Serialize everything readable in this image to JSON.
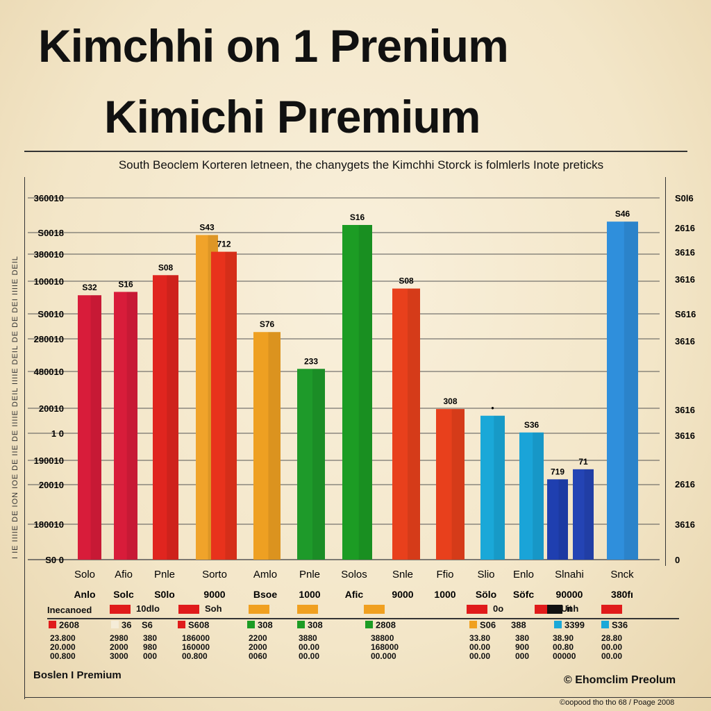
{
  "title_line1": "Kimchhi  on 1 Prenium",
  "title_line2": "Kimichi Pıremium",
  "subtitle": "South Beoclem Korteren letneen, the chanygets the Kimchhi Storck is folmlerls Inote preticks",
  "side_text": "I IE IIIIE DE ION IOE DE IIE DE IIIIE DEIL IIIIE DEIL DE DE DEI IIIIE DEIL",
  "chart_data": {
    "type": "bar",
    "title": "Kimchhi  on 1 Prenium",
    "y_left_ticks": [
      "360010",
      "S0018",
      "380010",
      "100010",
      "S0010",
      "280010",
      "480010",
      "20010",
      "1 0",
      "190010",
      "20010",
      "180010",
      "S0 0"
    ],
    "y_right_ticks": [
      "S0l6",
      "2616",
      "3616",
      "3616",
      "S616",
      "3616",
      "3616",
      "3616",
      "2616",
      "3616",
      "0"
    ],
    "ylim": [
      0,
      100
    ],
    "bars": [
      {
        "label": "S32",
        "value": 79,
        "color": "#d81c3a"
      },
      {
        "label": "S16",
        "value": 80,
        "color": "#d81c3a"
      },
      {
        "label": "S08",
        "value": 85,
        "color": "#e0251f"
      },
      {
        "label": "S43",
        "value": 97,
        "color": "#f0a32a"
      },
      {
        "label": "712",
        "value": 92,
        "color": "#e8321c"
      },
      {
        "label": "S76",
        "value": 68,
        "color": "#eea022"
      },
      {
        "label": "233",
        "value": 57,
        "color": "#1e9a2a"
      },
      {
        "label": "S16",
        "value": 100,
        "color": "#1c9c24"
      },
      {
        "label": "S08",
        "value": 81,
        "color": "#e8401c"
      },
      {
        "label": "308",
        "value": 45,
        "color": "#e8401c"
      },
      {
        "label": "•",
        "value": 43,
        "color": "#1aa8d8"
      },
      {
        "label": "S36",
        "value": 38,
        "color": "#1aa4d8"
      },
      {
        "label": "719",
        "value": 24,
        "color": "#1f3fb0"
      },
      {
        "label": "71",
        "value": 27,
        "color": "#2444b4"
      },
      {
        "label": "S46",
        "value": 101,
        "color": "#2f8fdc"
      }
    ],
    "categories_row1": [
      "Solo",
      "Afio",
      "Pnle",
      "Sorto",
      "Amlo",
      "Pnle",
      "Solos",
      "Snle",
      "Ffio",
      "Slio",
      "Enlo",
      "Slnahi",
      "Snck"
    ],
    "categories_row2": [
      "Anlo",
      "Solc",
      "S0lo",
      "9000",
      "Bsoe",
      "1000",
      "Afic",
      "9000",
      "1000",
      "Sölo",
      "Söfc",
      "90000",
      "380fı"
    ]
  },
  "legend": {
    "header": "Inecanoed",
    "top_swatches": [
      {
        "color": "#e01b1b",
        "text": "10dlo"
      },
      {
        "color": "#e01b1b",
        "text": "Soh"
      },
      {
        "color": "#f0a020",
        "text": ""
      },
      {
        "color": "#f0a020",
        "text": ""
      },
      {
        "color": "#f0a020",
        "text": ""
      },
      {
        "color": "#e01b1b",
        "text": "0o"
      },
      {
        "color": "#e01b1b",
        "text": "Unh"
      },
      {
        "color": "#111111",
        "text": "it"
      },
      {
        "color": "#e01b1b",
        "text": ""
      }
    ],
    "items": [
      {
        "color": "#e01b1b",
        "text": "2608"
      },
      {
        "color": "#f5ecd8",
        "text": "36"
      },
      {
        "color": "#e01b1b",
        "text": "S608"
      },
      {
        "color": "#1c9c24",
        "text": "308"
      },
      {
        "color": "#1c9c24",
        "text": "308"
      },
      {
        "color": "#1c9c24",
        "text": "2808"
      },
      {
        "color": "#f0a020",
        "text": "S06"
      },
      {
        "color": "#1aa8d8",
        "text": "3399"
      },
      {
        "color": "#1aa8d8",
        "text": "S36"
      }
    ],
    "item_extra": [
      "S6",
      "388"
    ],
    "number_columns": [
      "23.800\n20.000\n00.800",
      "2980\n2000\n3000",
      "380\n980\n000",
      "186000\n160000\n00.800",
      "2200\n2000\n0060",
      "3880\n00.00\n00.00",
      "38800\n168000\n00.000",
      "33.80\n00.00\n00.00",
      "380\n900\n000",
      "38.90\n00.80\n00000",
      "28.80\n00.00\n00.00"
    ]
  },
  "footer": {
    "left": "Boslen I Premium",
    "right": "© Ehomclim Preolum",
    "credit": "©oopood tho tho 68 / Poage 2008"
  }
}
